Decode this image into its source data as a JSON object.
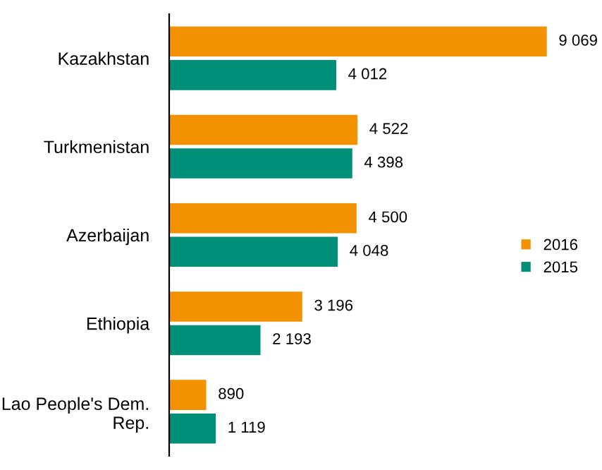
{
  "chart_data": {
    "type": "bar",
    "orientation": "horizontal",
    "categories": [
      "Kazakhstan",
      "Turkmenistan",
      "Azerbaijan",
      "Ethiopia",
      "Lao People's Dem.\nRep."
    ],
    "series": [
      {
        "name": "2016",
        "color": "#f39200",
        "values": [
          9069,
          4522,
          4500,
          3196,
          890
        ],
        "value_labels": [
          "9 069",
          "4 522",
          "4 500",
          "3 196",
          "890"
        ]
      },
      {
        "name": "2015",
        "color": "#00907a",
        "values": [
          4012,
          4398,
          4048,
          2193,
          1119
        ],
        "value_labels": [
          "4 012",
          "4 398",
          "4 048",
          "2 193",
          "1 119"
        ]
      }
    ],
    "legend": "center right",
    "grid": false,
    "tick_labels": "y"
  }
}
